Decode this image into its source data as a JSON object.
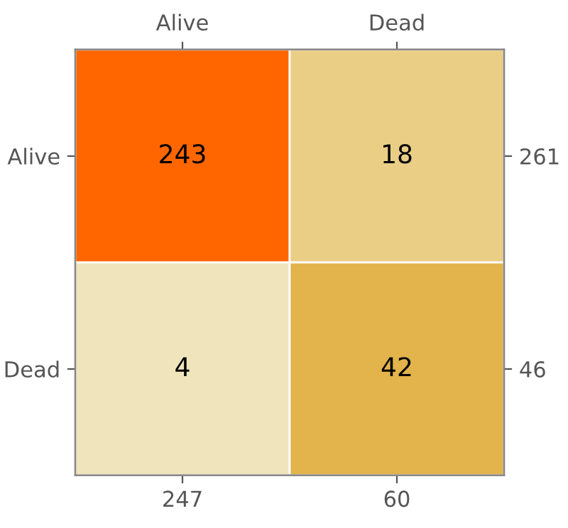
{
  "chart_data": {
    "type": "heatmap",
    "categories": [
      "Alive",
      "Dead"
    ],
    "y_categories": [
      "Alive",
      "Dead"
    ],
    "y2_categories": [
      "261",
      "46"
    ],
    "cells": [
      [
        243,
        18
      ],
      [
        4,
        42
      ]
    ],
    "data_labels": true,
    "annotations": [
      "247",
      "60"
    ]
  }
}
